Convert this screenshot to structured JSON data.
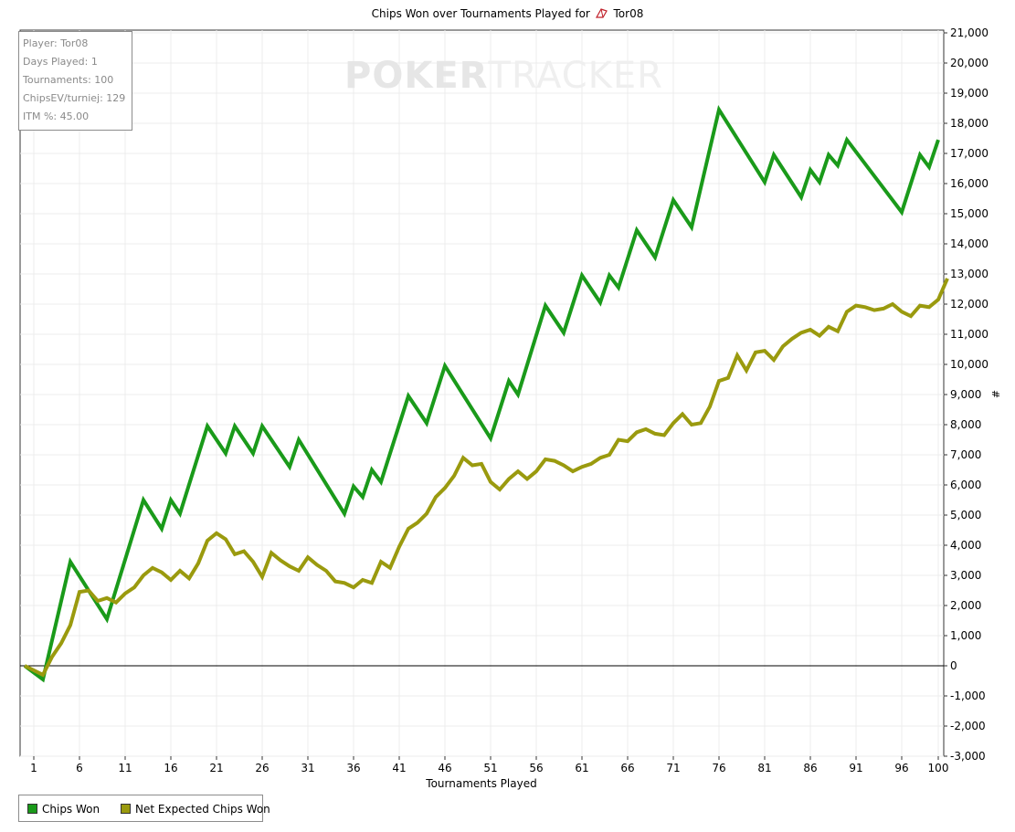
{
  "title": {
    "prefix": "Chips Won over Tournaments Played for",
    "player": "Tor08"
  },
  "info_box": {
    "player": "Player: Tor08",
    "days_played": "Days Played: 1",
    "tournaments": "Tournaments: 100",
    "chips_ev": "ChipsEV/turniej: 129",
    "itm": "ITM %: 45.00"
  },
  "watermark": {
    "part1": "POKER",
    "part2": "TRACKER"
  },
  "colors": {
    "chips_won": "#1a9a1a",
    "net_expected": "#9a9a0e",
    "zero_line": "#000000",
    "grid": "#ececec"
  },
  "chart_data": {
    "type": "line",
    "title": "Chips Won over Tournaments Played for Tor08",
    "xlabel": "Tournaments Played",
    "ylabel": "#",
    "xlim": [
      1,
      100
    ],
    "ylim": [
      -3000,
      21000
    ],
    "y_axis_position": "right",
    "grid": true,
    "legend_position": "bottom-left",
    "x_ticks": [
      1,
      6,
      11,
      16,
      21,
      26,
      31,
      36,
      41,
      46,
      51,
      56,
      61,
      66,
      71,
      76,
      81,
      86,
      91,
      96,
      100
    ],
    "y_ticks": [
      -3000,
      -2000,
      -1000,
      0,
      1000,
      2000,
      3000,
      4000,
      5000,
      6000,
      7000,
      8000,
      9000,
      10000,
      11000,
      12000,
      13000,
      14000,
      15000,
      16000,
      17000,
      18000,
      19000,
      20000,
      21000
    ],
    "y_tick_labels": [
      "-3,000",
      "-2,000",
      "-1,000",
      "0",
      "1,000",
      "2,000",
      "3,000",
      "4,000",
      "5,000",
      "6,000",
      "7,000",
      "8,000",
      "9,000",
      "10,000",
      "11,000",
      "12,000",
      "13,000",
      "14,000",
      "15,000",
      "16,000",
      "17,000",
      "18,000",
      "19,000",
      "20,000",
      "21,000"
    ],
    "series": [
      {
        "name": "Chips Won",
        "color": "#1a9a1a",
        "points": [
          [
            0,
            0
          ],
          [
            2,
            -450
          ],
          [
            5,
            3450
          ],
          [
            9,
            1550
          ],
          [
            13,
            5500
          ],
          [
            15,
            4550
          ],
          [
            16,
            5500
          ],
          [
            17,
            5050
          ],
          [
            20,
            7950
          ],
          [
            22,
            7050
          ],
          [
            23,
            7950
          ],
          [
            25,
            7050
          ],
          [
            26,
            7950
          ],
          [
            29,
            6600
          ],
          [
            30,
            7500
          ],
          [
            35,
            5050
          ],
          [
            36,
            5950
          ],
          [
            37,
            5600
          ],
          [
            38,
            6500
          ],
          [
            39,
            6100
          ],
          [
            42,
            8950
          ],
          [
            44,
            8050
          ],
          [
            46,
            9950
          ],
          [
            51,
            7550
          ],
          [
            53,
            9450
          ],
          [
            54,
            9000
          ],
          [
            57,
            11950
          ],
          [
            59,
            11050
          ],
          [
            61,
            12950
          ],
          [
            63,
            12050
          ],
          [
            64,
            12950
          ],
          [
            65,
            12550
          ],
          [
            67,
            14450
          ],
          [
            69,
            13550
          ],
          [
            71,
            15450
          ],
          [
            73,
            14550
          ],
          [
            76,
            18450
          ],
          [
            81,
            16050
          ],
          [
            82,
            16950
          ],
          [
            85,
            15550
          ],
          [
            86,
            16450
          ],
          [
            87,
            16050
          ],
          [
            88,
            16950
          ],
          [
            89,
            16600
          ],
          [
            90,
            17450
          ],
          [
            96,
            15050
          ],
          [
            98,
            16950
          ],
          [
            99,
            16550
          ],
          [
            100,
            17450
          ]
        ]
      },
      {
        "name": "Net Expected Chips Won",
        "color": "#9a9a0e",
        "points": [
          [
            0,
            0
          ],
          [
            2,
            -300
          ],
          [
            3,
            300
          ],
          [
            4,
            750
          ],
          [
            5,
            1350
          ],
          [
            6,
            2450
          ],
          [
            7,
            2500
          ],
          [
            8,
            2150
          ],
          [
            9,
            2250
          ],
          [
            10,
            2100
          ],
          [
            11,
            2400
          ],
          [
            12,
            2600
          ],
          [
            13,
            3000
          ],
          [
            14,
            3250
          ],
          [
            15,
            3100
          ],
          [
            16,
            2850
          ],
          [
            17,
            3150
          ],
          [
            18,
            2900
          ],
          [
            19,
            3400
          ],
          [
            20,
            4150
          ],
          [
            21,
            4400
          ],
          [
            22,
            4200
          ],
          [
            23,
            3700
          ],
          [
            24,
            3800
          ],
          [
            25,
            3450
          ],
          [
            26,
            2950
          ],
          [
            27,
            3750
          ],
          [
            28,
            3500
          ],
          [
            29,
            3300
          ],
          [
            30,
            3150
          ],
          [
            31,
            3600
          ],
          [
            32,
            3350
          ],
          [
            33,
            3150
          ],
          [
            34,
            2800
          ],
          [
            35,
            2750
          ],
          [
            36,
            2600
          ],
          [
            37,
            2850
          ],
          [
            38,
            2750
          ],
          [
            39,
            3450
          ],
          [
            40,
            3250
          ],
          [
            41,
            3950
          ],
          [
            42,
            4550
          ],
          [
            43,
            4750
          ],
          [
            44,
            5050
          ],
          [
            45,
            5600
          ],
          [
            46,
            5900
          ],
          [
            47,
            6300
          ],
          [
            48,
            6900
          ],
          [
            49,
            6650
          ],
          [
            50,
            6700
          ],
          [
            51,
            6100
          ],
          [
            52,
            5850
          ],
          [
            53,
            6200
          ],
          [
            54,
            6450
          ],
          [
            55,
            6200
          ],
          [
            56,
            6450
          ],
          [
            57,
            6850
          ],
          [
            58,
            6800
          ],
          [
            59,
            6650
          ],
          [
            60,
            6450
          ],
          [
            61,
            6600
          ],
          [
            62,
            6700
          ],
          [
            63,
            6900
          ],
          [
            64,
            7000
          ],
          [
            65,
            7500
          ],
          [
            66,
            7450
          ],
          [
            67,
            7750
          ],
          [
            68,
            7850
          ],
          [
            69,
            7700
          ],
          [
            70,
            7650
          ],
          [
            71,
            8050
          ],
          [
            72,
            8350
          ],
          [
            73,
            8000
          ],
          [
            74,
            8050
          ],
          [
            75,
            8600
          ],
          [
            76,
            9450
          ],
          [
            77,
            9550
          ],
          [
            78,
            10300
          ],
          [
            79,
            9800
          ],
          [
            80,
            10400
          ],
          [
            81,
            10450
          ],
          [
            82,
            10150
          ],
          [
            83,
            10600
          ],
          [
            84,
            10850
          ],
          [
            85,
            11050
          ],
          [
            86,
            11150
          ],
          [
            87,
            10950
          ],
          [
            88,
            11250
          ],
          [
            89,
            11100
          ],
          [
            90,
            11750
          ],
          [
            91,
            11950
          ],
          [
            92,
            11900
          ],
          [
            93,
            11800
          ],
          [
            94,
            11850
          ],
          [
            95,
            12000
          ],
          [
            96,
            11750
          ],
          [
            97,
            11600
          ],
          [
            98,
            11950
          ],
          [
            99,
            11900
          ],
          [
            100,
            12150
          ],
          [
            101,
            12850
          ]
        ]
      }
    ]
  },
  "legend": [
    "Chips Won",
    "Net Expected Chips Won"
  ]
}
